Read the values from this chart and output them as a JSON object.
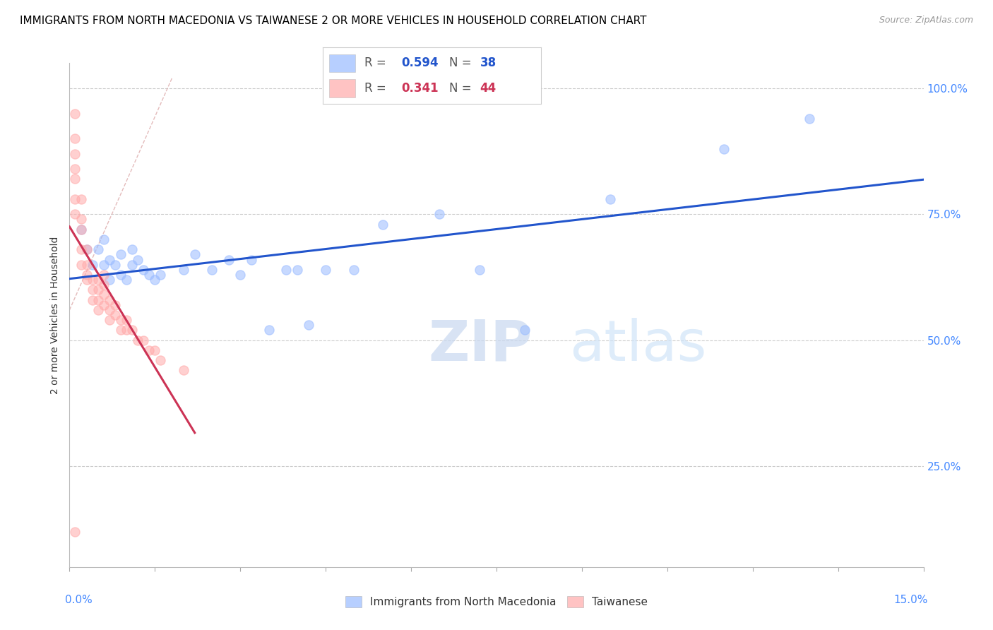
{
  "title": "IMMIGRANTS FROM NORTH MACEDONIA VS TAIWANESE 2 OR MORE VEHICLES IN HOUSEHOLD CORRELATION CHART",
  "source": "Source: ZipAtlas.com",
  "ylabel": "2 or more Vehicles in Household",
  "ytick_labels": [
    "100.0%",
    "75.0%",
    "50.0%",
    "25.0%"
  ],
  "ytick_values": [
    1.0,
    0.75,
    0.5,
    0.25
  ],
  "xlim": [
    0.0,
    0.15
  ],
  "ylim": [
    0.05,
    1.05
  ],
  "R_blue": 0.594,
  "N_blue": 38,
  "R_pink": 0.341,
  "N_pink": 44,
  "legend_label_blue": "Immigrants from North Macedonia",
  "legend_label_pink": "Taiwanese",
  "blue_color": "#99bbff",
  "pink_color": "#ffaaaa",
  "blue_line_color": "#2255cc",
  "pink_line_color": "#cc3355",
  "scatter_alpha": 0.55,
  "scatter_size": 90,
  "blue_points_x": [
    0.002,
    0.003,
    0.004,
    0.005,
    0.006,
    0.006,
    0.007,
    0.007,
    0.008,
    0.009,
    0.009,
    0.01,
    0.011,
    0.011,
    0.012,
    0.013,
    0.014,
    0.015,
    0.016,
    0.02,
    0.022,
    0.025,
    0.028,
    0.03,
    0.032,
    0.035,
    0.038,
    0.04,
    0.042,
    0.045,
    0.05,
    0.055,
    0.065,
    0.072,
    0.08,
    0.095,
    0.115,
    0.13
  ],
  "blue_points_y": [
    0.72,
    0.68,
    0.65,
    0.68,
    0.65,
    0.7,
    0.62,
    0.66,
    0.65,
    0.63,
    0.67,
    0.62,
    0.65,
    0.68,
    0.66,
    0.64,
    0.63,
    0.62,
    0.63,
    0.64,
    0.67,
    0.64,
    0.66,
    0.63,
    0.66,
    0.52,
    0.64,
    0.64,
    0.53,
    0.64,
    0.64,
    0.73,
    0.75,
    0.64,
    0.52,
    0.78,
    0.88,
    0.94
  ],
  "pink_points_x": [
    0.001,
    0.001,
    0.001,
    0.001,
    0.001,
    0.001,
    0.001,
    0.002,
    0.002,
    0.002,
    0.002,
    0.002,
    0.003,
    0.003,
    0.003,
    0.003,
    0.004,
    0.004,
    0.004,
    0.005,
    0.005,
    0.005,
    0.005,
    0.006,
    0.006,
    0.006,
    0.006,
    0.007,
    0.007,
    0.007,
    0.008,
    0.008,
    0.009,
    0.009,
    0.01,
    0.01,
    0.011,
    0.012,
    0.013,
    0.014,
    0.015,
    0.016,
    0.02,
    0.001
  ],
  "pink_points_y": [
    0.95,
    0.9,
    0.87,
    0.84,
    0.82,
    0.78,
    0.75,
    0.78,
    0.74,
    0.72,
    0.68,
    0.65,
    0.68,
    0.65,
    0.63,
    0.62,
    0.62,
    0.6,
    0.58,
    0.62,
    0.6,
    0.58,
    0.56,
    0.63,
    0.61,
    0.59,
    0.57,
    0.58,
    0.56,
    0.54,
    0.57,
    0.55,
    0.54,
    0.52,
    0.54,
    0.52,
    0.52,
    0.5,
    0.5,
    0.48,
    0.48,
    0.46,
    0.44,
    0.12
  ],
  "watermark_zip": "ZIP",
  "watermark_atlas": "atlas",
  "background_color": "#ffffff",
  "grid_color": "#cccccc",
  "axis_label_color": "#4488ff",
  "title_color": "#000000",
  "title_fontsize": 11,
  "ref_line_x": [
    0.0,
    0.018
  ],
  "ref_line_y": [
    0.56,
    1.02
  ]
}
